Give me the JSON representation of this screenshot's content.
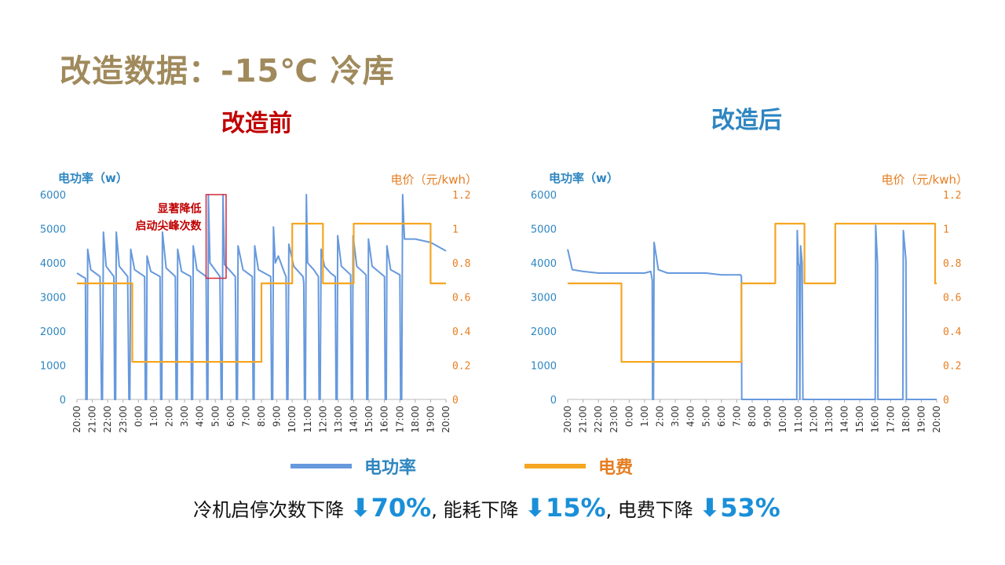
{
  "page": {
    "title": "改造数据：-15℃ 冷库",
    "subtitle_before": "改造前",
    "subtitle_after": "改造后",
    "annotation_before": [
      "显著降低",
      "启动尖峰次数"
    ]
  },
  "legend": {
    "power_label": "电功率",
    "cost_label": "电费",
    "power_color": "#6699dd",
    "cost_color": "#f5a623"
  },
  "summary": {
    "text1": "冷机启停次数下降",
    "pct1": "⬇70%",
    "sep1": ",",
    "text2": "能耗下降",
    "pct2": "⬇15%",
    "sep2": ",",
    "text3": "电费下降",
    "pct3": "⬇53%"
  },
  "chart_data": [
    {
      "type": "line",
      "title": "改造前",
      "ylabel_left": "电功率（w）",
      "ylabel_right": "电价（元/kwh）",
      "ylim_left": [
        0,
        6000
      ],
      "ylim_right": [
        0,
        1.2
      ],
      "yticks_left": [
        "0",
        "1000",
        "2000",
        "3000",
        "4000",
        "5000",
        "6000"
      ],
      "yticks_right": [
        "0",
        "0.2",
        "0.4",
        "0.6",
        "0.8",
        "1",
        "1.2"
      ],
      "x_ticks": [
        "20:00",
        "21:00",
        "22:00",
        "23:00",
        "0:00",
        "1:00",
        "2:00",
        "3:00",
        "4:00",
        "5:00",
        "6:00",
        "7:00",
        "8:00",
        "9:00",
        "10:00",
        "11:00",
        "12:00",
        "13:00",
        "14:00",
        "15:00",
        "16:00",
        "17:00",
        "18:00",
        "19:00",
        "20:00"
      ],
      "series": [
        {
          "name": "电功率",
          "points": [
            [
              0,
              3700
            ],
            [
              0.35,
              3600
            ],
            [
              0.55,
              3550
            ],
            [
              0.58,
              0
            ],
            [
              0.66,
              0
            ],
            [
              0.7,
              4400
            ],
            [
              0.9,
              3800
            ],
            [
              1.5,
              3600
            ],
            [
              1.6,
              0
            ],
            [
              1.66,
              0
            ],
            [
              1.72,
              4900
            ],
            [
              1.9,
              3900
            ],
            [
              2.4,
              3600
            ],
            [
              2.45,
              0
            ],
            [
              2.52,
              0
            ],
            [
              2.56,
              4900
            ],
            [
              2.75,
              3900
            ],
            [
              3.3,
              3600
            ],
            [
              3.38,
              0
            ],
            [
              3.44,
              0
            ],
            [
              3.5,
              4400
            ],
            [
              3.75,
              3800
            ],
            [
              4.4,
              3600
            ],
            [
              4.45,
              0
            ],
            [
              4.52,
              0
            ],
            [
              4.56,
              4200
            ],
            [
              4.8,
              3750
            ],
            [
              5.4,
              3600
            ],
            [
              5.45,
              0
            ],
            [
              5.52,
              0
            ],
            [
              5.56,
              4900
            ],
            [
              5.8,
              3850
            ],
            [
              6.4,
              3600
            ],
            [
              6.45,
              0
            ],
            [
              6.52,
              0
            ],
            [
              6.55,
              4400
            ],
            [
              6.8,
              3750
            ],
            [
              7.4,
              3600
            ],
            [
              7.45,
              0
            ],
            [
              7.52,
              0
            ],
            [
              7.56,
              4500
            ],
            [
              7.8,
              3800
            ],
            [
              8.4,
              3600
            ],
            [
              8.45,
              0
            ],
            [
              8.52,
              0
            ],
            [
              8.55,
              6000
            ],
            [
              8.65,
              4000
            ],
            [
              9.3,
              3600
            ],
            [
              9.38,
              0
            ],
            [
              9.44,
              0
            ],
            [
              9.5,
              6000
            ],
            [
              9.6,
              3950
            ],
            [
              10.3,
              3600
            ],
            [
              10.37,
              0
            ],
            [
              10.44,
              0
            ],
            [
              10.48,
              4500
            ],
            [
              10.8,
              3800
            ],
            [
              11.4,
              3600
            ],
            [
              11.46,
              0
            ],
            [
              11.52,
              0
            ],
            [
              11.56,
              4500
            ],
            [
              11.8,
              3800
            ],
            [
              12.6,
              3600
            ],
            [
              12.66,
              0
            ],
            [
              12.73,
              0
            ],
            [
              12.78,
              5050
            ],
            [
              12.9,
              4000
            ],
            [
              13.1,
              4200
            ],
            [
              13.5,
              3700
            ],
            [
              13.6,
              3600
            ],
            [
              13.65,
              0
            ],
            [
              13.72,
              0
            ],
            [
              13.78,
              4550
            ],
            [
              14.1,
              3900
            ],
            [
              14.7,
              3600
            ],
            [
              14.75,
              3400
            ],
            [
              14.8,
              0
            ],
            [
              14.86,
              0
            ],
            [
              14.92,
              6000
            ],
            [
              15.0,
              4000
            ],
            [
              15.4,
              3800
            ],
            [
              15.7,
              3600
            ],
            [
              15.75,
              0
            ],
            [
              15.82,
              0
            ],
            [
              15.88,
              4400
            ],
            [
              16.1,
              3900
            ],
            [
              16.5,
              3700
            ],
            [
              16.8,
              3600
            ],
            [
              16.85,
              0
            ],
            [
              16.92,
              0
            ],
            [
              16.96,
              4800
            ],
            [
              17.2,
              3900
            ],
            [
              17.8,
              3650
            ],
            [
              17.85,
              0
            ],
            [
              17.92,
              0
            ],
            [
              17.96,
              4800
            ],
            [
              18.2,
              3900
            ],
            [
              18.8,
              3650
            ],
            [
              18.85,
              0
            ],
            [
              18.92,
              0
            ],
            [
              18.96,
              4700
            ],
            [
              19.2,
              3900
            ],
            [
              20.0,
              3600
            ],
            [
              20.05,
              0
            ],
            [
              20.12,
              0
            ],
            [
              20.16,
              4500
            ],
            [
              20.4,
              3800
            ],
            [
              21.0,
              3650
            ],
            [
              21.05,
              0
            ],
            [
              21.12,
              0
            ],
            [
              21.18,
              6000
            ],
            [
              21.3,
              4700
            ],
            [
              22,
              4700
            ],
            [
              23,
              4600
            ],
            [
              24,
              4350
            ]
          ]
        },
        {
          "name": "电费",
          "points": [
            [
              0,
              0.68
            ],
            [
              3.6,
              0.68
            ],
            [
              3.6,
              0.22
            ],
            [
              12,
              0.22
            ],
            [
              12,
              0.68
            ],
            [
              14,
              0.68
            ],
            [
              14,
              1.03
            ],
            [
              16,
              1.03
            ],
            [
              16,
              0.68
            ],
            [
              18,
              0.68
            ],
            [
              18,
              1.03
            ],
            [
              23,
              1.03
            ],
            [
              23,
              0.68
            ],
            [
              24,
              0.68
            ]
          ]
        }
      ]
    },
    {
      "type": "line",
      "title": "改造后",
      "ylabel_left": "电功率（w）",
      "ylabel_right": "电价（元/kwh）",
      "ylim_left": [
        0,
        6000
      ],
      "ylim_right": [
        0,
        1.2
      ],
      "yticks_left": [
        "0",
        "1000",
        "2000",
        "3000",
        "4000",
        "5000",
        "6000"
      ],
      "yticks_right": [
        "0",
        "0.2",
        "0.4",
        "0.6",
        "0.8",
        "1",
        "1.2"
      ],
      "x_ticks": [
        "20:00",
        "21:00",
        "22:00",
        "23:00",
        "0:00",
        "1:00",
        "2:00",
        "3:00",
        "4:00",
        "5:00",
        "6:00",
        "7:00",
        "8:00",
        "9:00",
        "10:00",
        "11:00",
        "12:00",
        "13:00",
        "14:00",
        "15:00",
        "16:00",
        "17:00",
        "18:00",
        "19:00",
        "20:00"
      ],
      "series": [
        {
          "name": "电功率",
          "points": [
            [
              0,
              4400
            ],
            [
              0.3,
              3800
            ],
            [
              1,
              3750
            ],
            [
              2,
              3700
            ],
            [
              3,
              3700
            ],
            [
              4,
              3700
            ],
            [
              5,
              3700
            ],
            [
              5.4,
              3750
            ],
            [
              5.5,
              3500
            ],
            [
              5.52,
              0
            ],
            [
              5.58,
              0
            ],
            [
              5.62,
              4600
            ],
            [
              5.9,
              3800
            ],
            [
              6.5,
              3700
            ],
            [
              8,
              3700
            ],
            [
              9,
              3700
            ],
            [
              10,
              3650
            ],
            [
              11.25,
              3650
            ],
            [
              11.3,
              3600
            ],
            [
              11.32,
              0
            ],
            [
              14.9,
              0
            ],
            [
              14.93,
              4950
            ],
            [
              15.0,
              4000
            ],
            [
              15.05,
              3900
            ],
            [
              15.1,
              0
            ],
            [
              15.15,
              4500
            ],
            [
              15.25,
              4000
            ],
            [
              15.3,
              0
            ],
            [
              20.0,
              0
            ],
            [
              20.03,
              5100
            ],
            [
              20.15,
              4000
            ],
            [
              20.18,
              0
            ],
            [
              21.8,
              0
            ],
            [
              21.83,
              4950
            ],
            [
              22.0,
              4100
            ],
            [
              22.03,
              0
            ],
            [
              24,
              0
            ]
          ]
        },
        {
          "name": "电费",
          "points": [
            [
              0,
              0.68
            ],
            [
              3.5,
              0.68
            ],
            [
              3.5,
              0.22
            ],
            [
              11.3,
              0.22
            ],
            [
              11.3,
              0.68
            ],
            [
              13.5,
              0.68
            ],
            [
              13.5,
              1.03
            ],
            [
              15.4,
              1.03
            ],
            [
              15.4,
              0.68
            ],
            [
              17.4,
              0.68
            ],
            [
              17.4,
              1.03
            ],
            [
              23.9,
              1.03
            ],
            [
              23.9,
              0.68
            ],
            [
              24,
              0.68
            ]
          ]
        }
      ]
    }
  ]
}
